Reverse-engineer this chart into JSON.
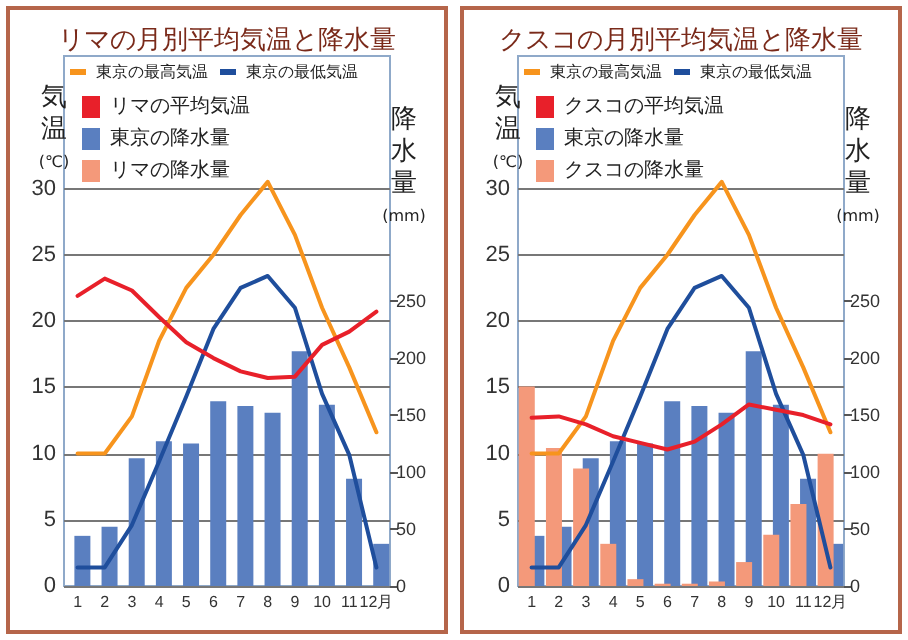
{
  "chart_data": [
    {
      "type": "bar",
      "title": "リマの月別平均気温と降水量",
      "ylabel": "気温(℃)",
      "y2label": "降水量(mm)",
      "categories": [
        "1",
        "2",
        "3",
        "4",
        "5",
        "6",
        "7",
        "8",
        "9",
        "10",
        "11",
        "12月"
      ],
      "series": [
        {
          "name": "東京の最高気温",
          "type": "line",
          "color": "#f7941d",
          "values": [
            10,
            10,
            12.8,
            18.5,
            22.5,
            25,
            28,
            30.5,
            26.5,
            21,
            16.5,
            11.6
          ]
        },
        {
          "name": "東京の最低気温",
          "type": "line",
          "color": "#1f4e9c",
          "values": [
            1.4,
            1.4,
            4.6,
            9.4,
            14.3,
            19.4,
            22.5,
            23.4,
            21,
            14.5,
            9.9,
            1.4
          ]
        },
        {
          "name": "リマの平均気温",
          "type": "line",
          "color": "#e8202a",
          "values": [
            21.9,
            23.2,
            22.3,
            20.3,
            18.4,
            17.2,
            16.2,
            15.7,
            15.8,
            18.2,
            19.2,
            20.7
          ]
        },
        {
          "name": "東京の降水量",
          "type": "bar",
          "axis": "y2",
          "color": "#5a7fc0",
          "values": [
            44,
            52,
            112,
            127,
            125,
            162,
            158,
            152,
            206,
            159,
            94,
            37
          ]
        },
        {
          "name": "リマの降水量",
          "type": "bar",
          "axis": "y2",
          "color": "#f4997a",
          "values": [
            0,
            0,
            0,
            0,
            0,
            0,
            0,
            0,
            0,
            0,
            0,
            0
          ]
        }
      ],
      "ylim": [
        0,
        40
      ],
      "yticks": [
        0,
        5,
        10,
        15,
        20,
        25,
        30
      ],
      "y2lim": [
        0,
        465
      ],
      "y2ticks": [
        0,
        50,
        100,
        150,
        200,
        250
      ],
      "grid": "y",
      "legend": "top",
      "marker": "none",
      "line_style": "solid"
    },
    {
      "type": "bar",
      "title": "クスコの月別平均気温と降水量",
      "ylabel": "気温(℃)",
      "y2label": "降水量(mm)",
      "categories": [
        "1",
        "2",
        "3",
        "4",
        "5",
        "6",
        "7",
        "8",
        "9",
        "10",
        "11",
        "12月"
      ],
      "series": [
        {
          "name": "東京の最高気温",
          "type": "line",
          "color": "#f7941d",
          "values": [
            10,
            10,
            12.8,
            18.5,
            22.5,
            25,
            28,
            30.5,
            26.5,
            21,
            16.5,
            11.6
          ]
        },
        {
          "name": "東京の最低気温",
          "type": "line",
          "color": "#1f4e9c",
          "values": [
            1.4,
            1.4,
            4.6,
            9.4,
            14.3,
            19.4,
            22.5,
            23.4,
            21,
            14.5,
            9.9,
            1.4
          ]
        },
        {
          "name": "クスコの平均気温",
          "type": "line",
          "color": "#e8202a",
          "values": [
            12.7,
            12.8,
            12.2,
            11.3,
            10.8,
            10.3,
            10.9,
            12.2,
            13.7,
            13.3,
            12.9,
            12.2
          ]
        },
        {
          "name": "東京の降水量",
          "type": "bar",
          "axis": "y2",
          "color": "#5a7fc0",
          "values": [
            44,
            52,
            112,
            127,
            125,
            162,
            158,
            152,
            206,
            159,
            94,
            37
          ]
        },
        {
          "name": "クスコの降水量",
          "type": "bar",
          "axis": "y2",
          "color": "#f4997a",
          "values": [
            175,
            121,
            103,
            37,
            6,
            2,
            2,
            4,
            21,
            45,
            72,
            116
          ]
        }
      ],
      "ylim": [
        0,
        40
      ],
      "yticks": [
        0,
        5,
        10,
        15,
        20,
        25,
        30
      ],
      "y2lim": [
        0,
        465
      ],
      "y2ticks": [
        0,
        50,
        100,
        150,
        200,
        250
      ],
      "grid": "y",
      "legend": "top",
      "marker": "none",
      "line_style": "solid"
    }
  ]
}
